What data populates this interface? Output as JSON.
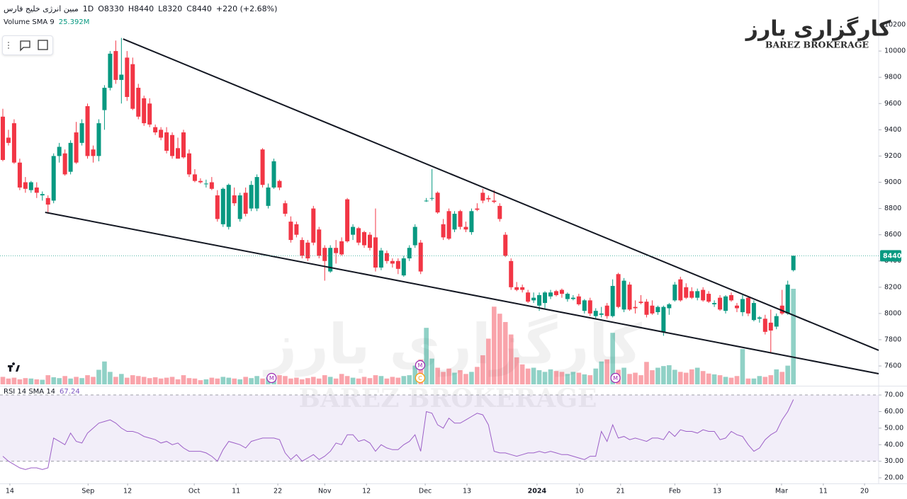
{
  "chart_data": {
    "type": "candlestick",
    "title": "مبین انرژی خلیج فارس",
    "interval": "1D",
    "ohlc_text": [
      "O8330",
      "H8440",
      "L8320",
      "C8440"
    ],
    "change_text": "+220 (+2.68%)",
    "volume_label": "Volume SMA 9",
    "volume_sma_text": "25.392M",
    "rsi_label": "RSI 14 SMA 14",
    "logo": {
      "title": "کارگزاری بارز",
      "subtitle": "BAREZ BROKERAGE"
    },
    "watermark": {
      "title": "کارگزاری بارز",
      "subtitle": "BAREZ BROKERAGE"
    },
    "up_color": "#089981",
    "down_color": "#f23645",
    "rsi_color": "#9c5fc7",
    "xlim": [
      -0.5,
      155.1
    ],
    "xticks": [
      {
        "value": 1.25,
        "label": "14"
      },
      {
        "value": 15.1,
        "label": "Sep"
      },
      {
        "value": 22.1,
        "label": "12"
      },
      {
        "value": 33.9,
        "label": "Oct"
      },
      {
        "value": 41.3,
        "label": "11"
      },
      {
        "value": 48.7,
        "label": "22"
      },
      {
        "value": 57,
        "label": "Nov"
      },
      {
        "value": 64.4,
        "label": "12"
      },
      {
        "value": 74.8,
        "label": "Dec"
      },
      {
        "value": 82.2,
        "label": "13"
      },
      {
        "value": 94.6,
        "label": "2024"
      },
      {
        "value": 102.1,
        "label": "10"
      },
      {
        "value": 109.4,
        "label": "21"
      },
      {
        "value": 119,
        "label": "Feb"
      },
      {
        "value": 126.5,
        "label": "13"
      },
      {
        "value": 137.9,
        "label": "Mar"
      },
      {
        "value": 145.3,
        "label": "11"
      },
      {
        "value": 152.6,
        "label": "20"
      }
    ],
    "ylim": [
      7460,
      10389
    ],
    "yticks": [
      7600,
      7800,
      8000,
      8200,
      8400,
      8600,
      8800,
      9000,
      9200,
      9400,
      9600,
      9800,
      10000,
      10200
    ],
    "rsi_ylim": [
      16.6,
      74.3
    ],
    "rsi_yticks": [
      {
        "value": 20,
        "label": "20.00"
      },
      {
        "value": 30,
        "label": "30.00"
      },
      {
        "value": 40,
        "label": "40.00"
      },
      {
        "value": 50,
        "label": "50.00"
      },
      {
        "value": 60,
        "label": "60.00"
      },
      {
        "value": 70,
        "label": "70.00"
      }
    ],
    "rsi_band": [
      30,
      70
    ],
    "trendlines": [
      {
        "x": [
          21.3,
          155.1
        ],
        "y": [
          10092,
          7719
        ]
      },
      {
        "x": [
          7.5,
          155.1
        ],
        "y": [
          8771,
          7541
        ]
      }
    ],
    "events": [
      {
        "x": 47.6,
        "label": "M"
      },
      {
        "x": 73.9,
        "label": "M"
      },
      {
        "x": 73.9,
        "label": "C"
      },
      {
        "x": 108.5,
        "label": "M"
      }
    ],
    "ohlc": [
      [
        9500,
        9560,
        9160,
        9170
      ],
      [
        9340,
        9400,
        9280,
        9300
      ],
      [
        9450,
        9480,
        9140,
        9150
      ],
      [
        9150,
        9180,
        8940,
        8960
      ],
      [
        9000,
        9040,
        8920,
        8950
      ],
      [
        8940,
        9010,
        8920,
        9000
      ],
      [
        8960,
        9000,
        8880,
        8920
      ],
      [
        8900,
        8930,
        8860,
        8910
      ],
      [
        8880,
        8900,
        8760,
        8830
      ],
      [
        8860,
        9220,
        8840,
        9200
      ],
      [
        9200,
        9300,
        9150,
        9270
      ],
      [
        9220,
        9250,
        9050,
        9060
      ],
      [
        9080,
        9320,
        9060,
        9300
      ],
      [
        9380,
        9460,
        9140,
        9150
      ],
      [
        9300,
        9480,
        9280,
        9450
      ],
      [
        9580,
        9600,
        9180,
        9200
      ],
      [
        9250,
        9280,
        9150,
        9200
      ],
      [
        9200,
        9480,
        9160,
        9450
      ],
      [
        9550,
        9740,
        9400,
        9720
      ],
      [
        9720,
        10000,
        9700,
        9980
      ],
      [
        10000,
        10080,
        9750,
        9780
      ],
      [
        9780,
        10100,
        9600,
        9820
      ],
      [
        9950,
        10000,
        9620,
        9650
      ],
      [
        9900,
        9950,
        9550,
        9560
      ],
      [
        9720,
        9750,
        9480,
        9500
      ],
      [
        9640,
        9660,
        9430,
        9450
      ],
      [
        9600,
        9640,
        9420,
        9440
      ],
      [
        9420,
        9440,
        9360,
        9380
      ],
      [
        9400,
        9420,
        9320,
        9340
      ],
      [
        9380,
        9420,
        9220,
        9240
      ],
      [
        9360,
        9380,
        9180,
        9200
      ],
      [
        9260,
        9340,
        9180,
        9180
      ],
      [
        9380,
        9400,
        9180,
        9190
      ],
      [
        9220,
        9250,
        9040,
        9060
      ],
      [
        9060,
        9100,
        9000,
        9010
      ],
      [
        9010,
        9030,
        8990,
        9000
      ],
      [
        8990,
        9020,
        8960,
        8990
      ],
      [
        9000,
        9040,
        8940,
        8950
      ],
      [
        8900,
        8940,
        8700,
        8720
      ],
      [
        8680,
        8960,
        8660,
        8950
      ],
      [
        8660,
        8990,
        8640,
        8980
      ],
      [
        8900,
        8960,
        8820,
        8840
      ],
      [
        8720,
        8920,
        8700,
        8900
      ],
      [
        8920,
        8960,
        8740,
        8760
      ],
      [
        8800,
        9010,
        8780,
        8980
      ],
      [
        8800,
        9060,
        8780,
        9040
      ],
      [
        9250,
        9260,
        8960,
        8980
      ],
      [
        8820,
        8990,
        8800,
        8960
      ],
      [
        8960,
        9180,
        8950,
        9160
      ],
      [
        9010,
        9020,
        8940,
        8960
      ],
      [
        8840,
        8860,
        8740,
        8760
      ],
      [
        8700,
        8740,
        8540,
        8560
      ],
      [
        8680,
        8700,
        8580,
        8600
      ],
      [
        8560,
        8580,
        8420,
        8440
      ],
      [
        8540,
        8560,
        8400,
        8420
      ],
      [
        8800,
        8820,
        8520,
        8540
      ],
      [
        8640,
        8660,
        8420,
        8440
      ],
      [
        8500,
        8520,
        8250,
        8400
      ],
      [
        8320,
        8520,
        8310,
        8500
      ],
      [
        8500,
        8560,
        8380,
        8460
      ],
      [
        8550,
        8580,
        8440,
        8450
      ],
      [
        8870,
        8880,
        8540,
        8550
      ],
      [
        8600,
        8680,
        8560,
        8660
      ],
      [
        8650,
        8660,
        8520,
        8540
      ],
      [
        8620,
        8630,
        8500,
        8520
      ],
      [
        8600,
        8620,
        8480,
        8500
      ],
      [
        8580,
        8800,
        8320,
        8350
      ],
      [
        8350,
        8500,
        8330,
        8480
      ],
      [
        8460,
        8480,
        8380,
        8400
      ],
      [
        8400,
        8420,
        8350,
        8380
      ],
      [
        8400,
        8420,
        8300,
        8340
      ],
      [
        8290,
        8440,
        8280,
        8420
      ],
      [
        8420,
        8520,
        8400,
        8500
      ],
      [
        8520,
        8680,
        8500,
        8660
      ],
      [
        8540,
        8560,
        8300,
        8320
      ],
      [
        8860,
        8880,
        8850,
        8860
      ],
      [
        8880,
        9100,
        8860,
        8880
      ],
      [
        8920,
        8930,
        8760,
        8770
      ],
      [
        8680,
        8720,
        8560,
        8580
      ],
      [
        8780,
        8800,
        8560,
        8570
      ],
      [
        8640,
        8780,
        8620,
        8760
      ],
      [
        8780,
        8790,
        8640,
        8660
      ],
      [
        8660,
        8700,
        8620,
        8640
      ],
      [
        8620,
        8800,
        8600,
        8780
      ],
      [
        8800,
        8840,
        8780,
        8790
      ],
      [
        8920,
        8950,
        8840,
        8860
      ],
      [
        8880,
        8900,
        8850,
        8870
      ],
      [
        8860,
        8940,
        8840,
        8850
      ],
      [
        8820,
        8840,
        8700,
        8720
      ],
      [
        8600,
        8620,
        8430,
        8440
      ],
      [
        8400,
        8420,
        8180,
        8200
      ],
      [
        8200,
        8240,
        8170,
        8180
      ],
      [
        8200,
        8220,
        8160,
        8180
      ],
      [
        8160,
        8180,
        8080,
        8090
      ],
      [
        8100,
        8160,
        8080,
        8120
      ],
      [
        8060,
        8160,
        8020,
        8140
      ],
      [
        8080,
        8170,
        8040,
        8160
      ],
      [
        8130,
        8180,
        8110,
        8160
      ],
      [
        8170,
        8180,
        8130,
        8140
      ],
      [
        8180,
        8190,
        8120,
        8150
      ],
      [
        8110,
        8160,
        8090,
        8150
      ],
      [
        8110,
        8140,
        8100,
        8120
      ],
      [
        8130,
        8150,
        8060,
        8070
      ],
      [
        8020,
        8110,
        8000,
        8100
      ],
      [
        8100,
        8120,
        7980,
        8000
      ],
      [
        7980,
        8040,
        7960,
        8020
      ],
      [
        7990,
        8050,
        7970,
        8000
      ],
      [
        8060,
        8080,
        7960,
        7980
      ],
      [
        7980,
        8260,
        7970,
        8210
      ],
      [
        8300,
        8310,
        8040,
        8050
      ],
      [
        8030,
        8270,
        8010,
        8250
      ],
      [
        8220,
        8240,
        8020,
        8030
      ],
      [
        8050,
        8100,
        8000,
        8040
      ],
      [
        8090,
        8140,
        8070,
        8080
      ],
      [
        8090,
        8110,
        7970,
        7990
      ],
      [
        8060,
        8100,
        7990,
        8000
      ],
      [
        8010,
        8060,
        7990,
        8050
      ],
      [
        7860,
        8060,
        7830,
        8050
      ],
      [
        8040,
        8080,
        7990,
        8070
      ],
      [
        8100,
        8240,
        8090,
        8220
      ],
      [
        8260,
        8280,
        8090,
        8100
      ],
      [
        8200,
        8230,
        8110,
        8120
      ],
      [
        8170,
        8200,
        8110,
        8120
      ],
      [
        8120,
        8190,
        8100,
        8170
      ],
      [
        8180,
        8200,
        8090,
        8100
      ],
      [
        8150,
        8170,
        8080,
        8090
      ],
      [
        8070,
        8100,
        8050,
        8080
      ],
      [
        8120,
        8140,
        8020,
        8030
      ],
      [
        8020,
        8140,
        8000,
        8130
      ],
      [
        8140,
        8160,
        8090,
        8100
      ],
      [
        8060,
        8080,
        8010,
        8040
      ],
      [
        8010,
        8140,
        7980,
        8110
      ],
      [
        8120,
        8130,
        7980,
        8000
      ],
      [
        7950,
        8100,
        7940,
        8080
      ],
      [
        7960,
        7980,
        7930,
        7970
      ],
      [
        7960,
        7990,
        7840,
        7860
      ],
      [
        7930,
        8030,
        7700,
        7870
      ],
      [
        7900,
        8000,
        7880,
        7980
      ],
      [
        8060,
        8180,
        7990,
        8000
      ],
      [
        8000,
        8250,
        7990,
        8220
      ],
      [
        8330,
        8440,
        8320,
        8440
      ]
    ],
    "volume": [
      18,
      14,
      16,
      12,
      15,
      14,
      12,
      11,
      22,
      17,
      15,
      20,
      14,
      18,
      15,
      22,
      18,
      35,
      55,
      30,
      18,
      25,
      16,
      22,
      20,
      18,
      15,
      17,
      14,
      16,
      18,
      12,
      22,
      15,
      14,
      10,
      12,
      16,
      14,
      18,
      16,
      14,
      12,
      18,
      15,
      20,
      14,
      17,
      12,
      22,
      20,
      14,
      16,
      12,
      15,
      18,
      14,
      22,
      18,
      14,
      25,
      20,
      16,
      14,
      18,
      15,
      22,
      20,
      14,
      18,
      16,
      20,
      22,
      45,
      60,
      136,
      62,
      40,
      30,
      38,
      28,
      34,
      25,
      30,
      42,
      70,
      110,
      187,
      170,
      150,
      120,
      65,
      48,
      38,
      40,
      34,
      30,
      36,
      32,
      30,
      25,
      30,
      28,
      24,
      22,
      38,
      55,
      60,
      124,
      35,
      40,
      25,
      28,
      22,
      54,
      34,
      40,
      44,
      46,
      35,
      30,
      28,
      36,
      40,
      32,
      26,
      24,
      22,
      18,
      16,
      20,
      85,
      14,
      14,
      20,
      18,
      22,
      36,
      30,
      45,
      230
    ],
    "rsi": [
      33,
      30,
      28,
      26,
      25,
      26,
      26,
      25,
      26,
      44,
      42,
      40,
      47,
      42,
      41,
      47,
      50,
      53,
      54,
      55,
      53,
      50,
      48,
      48,
      47,
      45,
      44,
      43,
      41,
      42,
      40,
      41,
      38,
      36,
      36,
      36,
      35,
      33,
      30,
      37,
      42,
      41,
      40,
      38,
      42,
      43,
      44,
      44,
      44,
      43,
      35,
      31,
      34,
      30,
      32,
      34,
      31,
      33,
      36,
      41,
      40,
      46,
      46,
      42,
      43,
      41,
      36,
      40,
      38,
      37,
      37,
      40,
      42,
      46,
      36,
      60,
      59,
      52,
      50,
      56,
      53,
      53,
      55,
      57,
      59,
      58,
      52,
      36,
      35,
      35,
      34,
      33,
      34,
      35,
      35,
      36,
      35,
      36,
      35,
      34,
      34,
      33,
      32,
      31,
      33,
      33,
      48,
      42,
      52,
      44,
      45,
      43,
      44,
      43,
      42,
      44,
      44,
      43,
      48,
      45,
      49,
      48,
      48,
      47,
      49,
      48,
      48,
      43,
      44,
      48,
      46,
      45,
      40,
      36,
      38,
      43,
      46,
      48,
      55,
      60,
      67.24
    ]
  }
}
